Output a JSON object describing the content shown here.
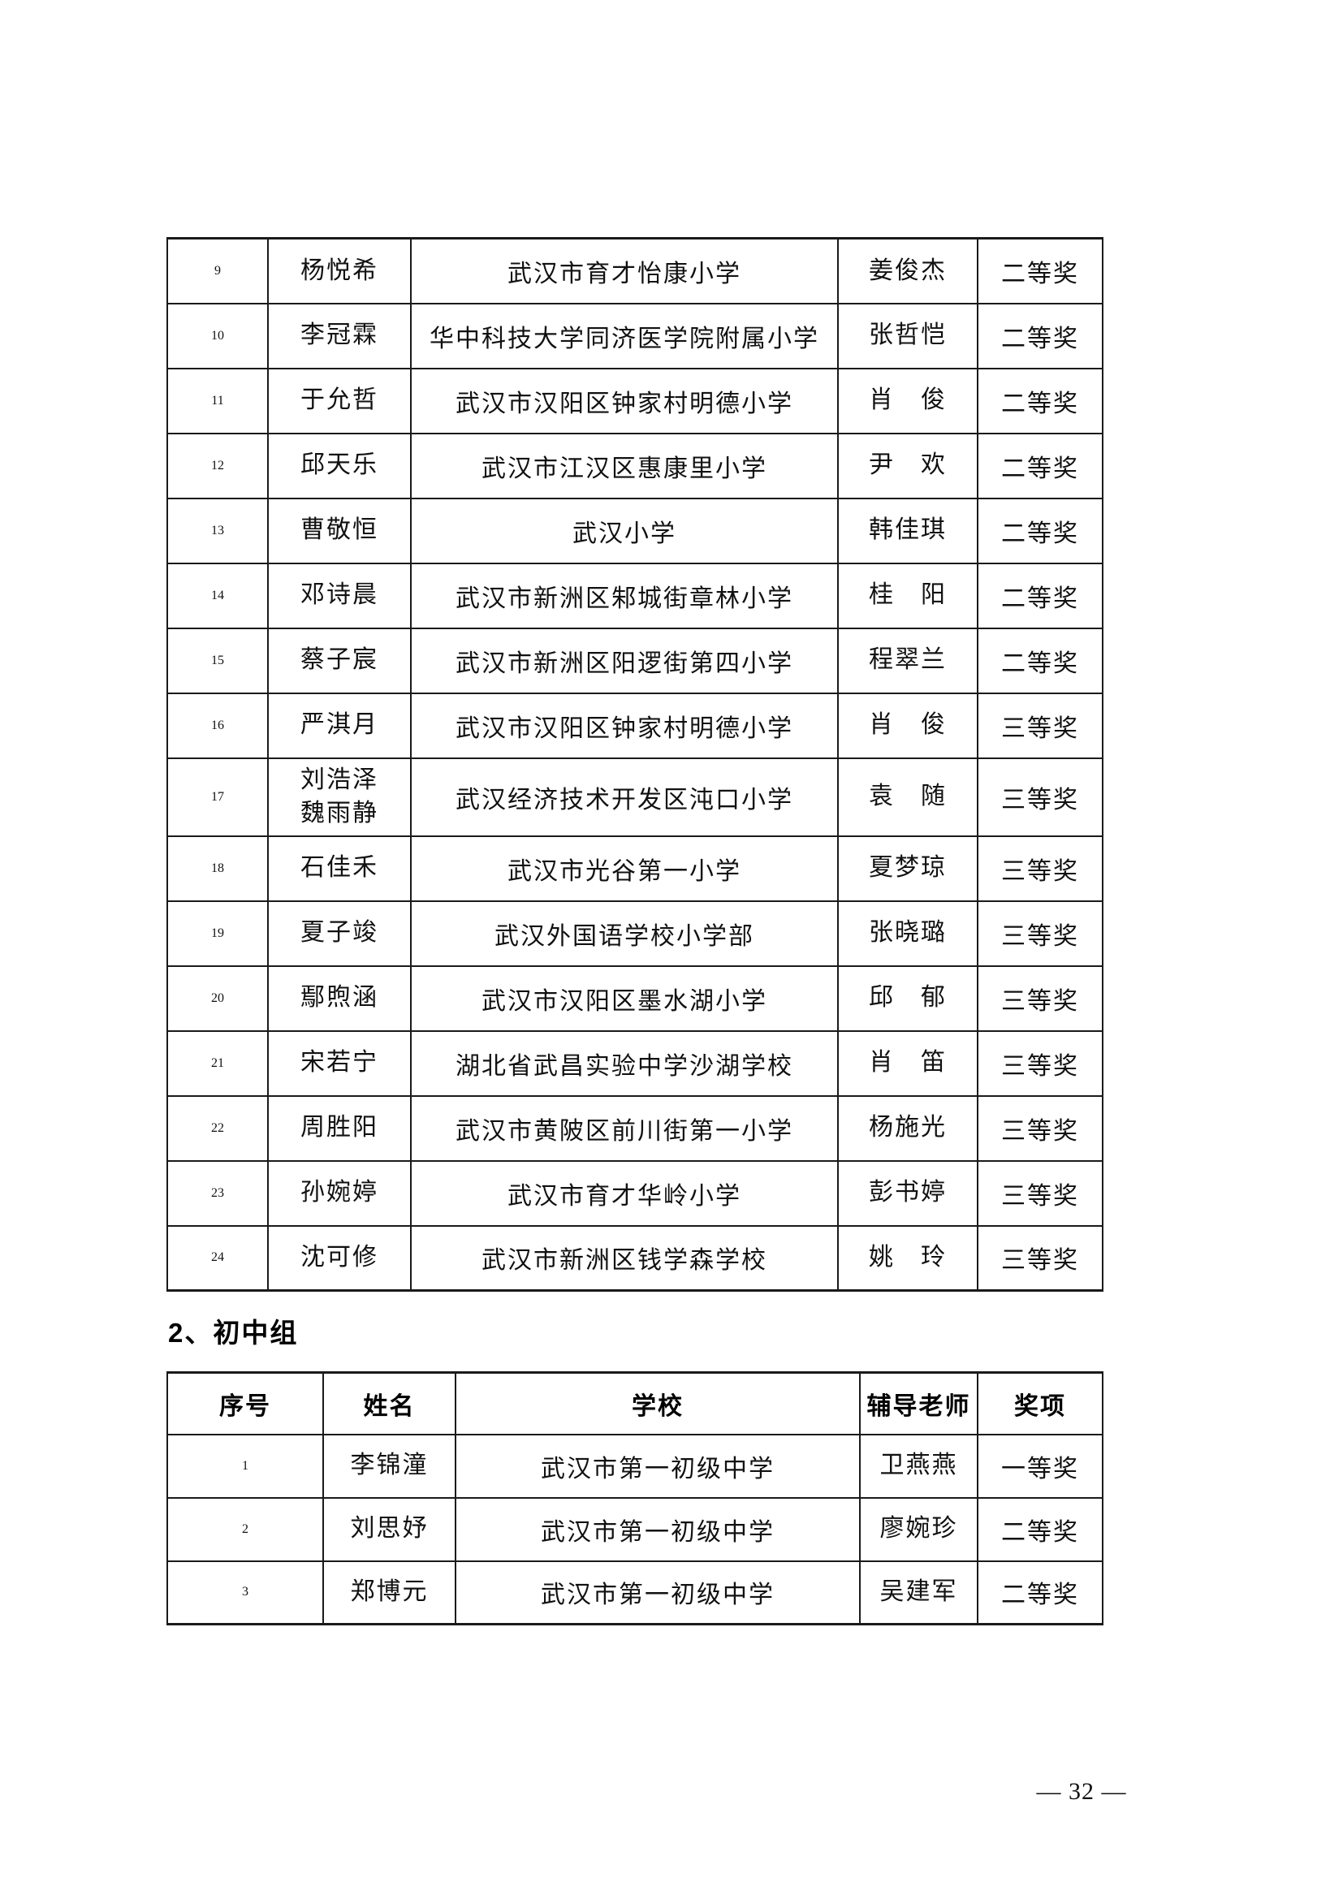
{
  "page": {
    "footer": "— 32 —"
  },
  "section2": {
    "heading": "2、初中组"
  },
  "table1": {
    "rows": [
      {
        "no": "9",
        "name": "杨悦希",
        "school": "武汉市育才怡康小学",
        "teacher": "姜俊杰",
        "award": "二等奖"
      },
      {
        "no": "10",
        "name": "李冠霖",
        "school": "华中科技大学同济医学院附属小学",
        "teacher": "张哲恺",
        "award": "二等奖"
      },
      {
        "no": "11",
        "name": "于允哲",
        "school": "武汉市汉阳区钟家村明德小学",
        "teacher": "肖　俊",
        "award": "二等奖"
      },
      {
        "no": "12",
        "name": "邱天乐",
        "school": "武汉市江汉区惠康里小学",
        "teacher": "尹　欢",
        "award": "二等奖"
      },
      {
        "no": "13",
        "name": "曹敬恒",
        "school": "武汉小学",
        "teacher": "韩佳琪",
        "award": "二等奖"
      },
      {
        "no": "14",
        "name": "邓诗晨",
        "school": "武汉市新洲区邾城街章林小学",
        "teacher": "桂　阳",
        "award": "二等奖"
      },
      {
        "no": "15",
        "name": "蔡子宸",
        "school": "武汉市新洲区阳逻街第四小学",
        "teacher": "程翠兰",
        "award": "二等奖"
      },
      {
        "no": "16",
        "name": "严淇月",
        "school": "武汉市汉阳区钟家村明德小学",
        "teacher": "肖　俊",
        "award": "三等奖"
      },
      {
        "no": "17",
        "name": "刘浩泽\n魏雨静",
        "school": "武汉经济技术开发区沌口小学",
        "teacher": "袁　随",
        "award": "三等奖"
      },
      {
        "no": "18",
        "name": "石佳禾",
        "school": "武汉市光谷第一小学",
        "teacher": "夏梦琼",
        "award": "三等奖"
      },
      {
        "no": "19",
        "name": "夏子竣",
        "school": "武汉外国语学校小学部",
        "teacher": "张晓璐",
        "award": "三等奖"
      },
      {
        "no": "20",
        "name": "鄢煦涵",
        "school": "武汉市汉阳区墨水湖小学",
        "teacher": "邱　郁",
        "award": "三等奖"
      },
      {
        "no": "21",
        "name": "宋若宁",
        "school": "湖北省武昌实验中学沙湖学校",
        "teacher": "肖　笛",
        "award": "三等奖"
      },
      {
        "no": "22",
        "name": "周胜阳",
        "school": "武汉市黄陂区前川街第一小学",
        "teacher": "杨施光",
        "award": "三等奖"
      },
      {
        "no": "23",
        "name": "孙婉婷",
        "school": "武汉市育才华岭小学",
        "teacher": "彭书婷",
        "award": "三等奖"
      },
      {
        "no": "24",
        "name": "沈可修",
        "school": "武汉市新洲区钱学森学校",
        "teacher": "姚　玲",
        "award": "三等奖"
      }
    ]
  },
  "table2": {
    "headers": [
      "序号",
      "姓名",
      "学校",
      "辅导老师",
      "奖项"
    ],
    "rows": [
      {
        "no": "1",
        "name": "李锦潼",
        "school": "武汉市第一初级中学",
        "teacher": "卫燕燕",
        "award": "一等奖"
      },
      {
        "no": "2",
        "name": "刘思妤",
        "school": "武汉市第一初级中学",
        "teacher": "廖婉珍",
        "award": "二等奖"
      },
      {
        "no": "3",
        "name": "郑博元",
        "school": "武汉市第一初级中学",
        "teacher": "吴建军",
        "award": "二等奖"
      }
    ]
  }
}
